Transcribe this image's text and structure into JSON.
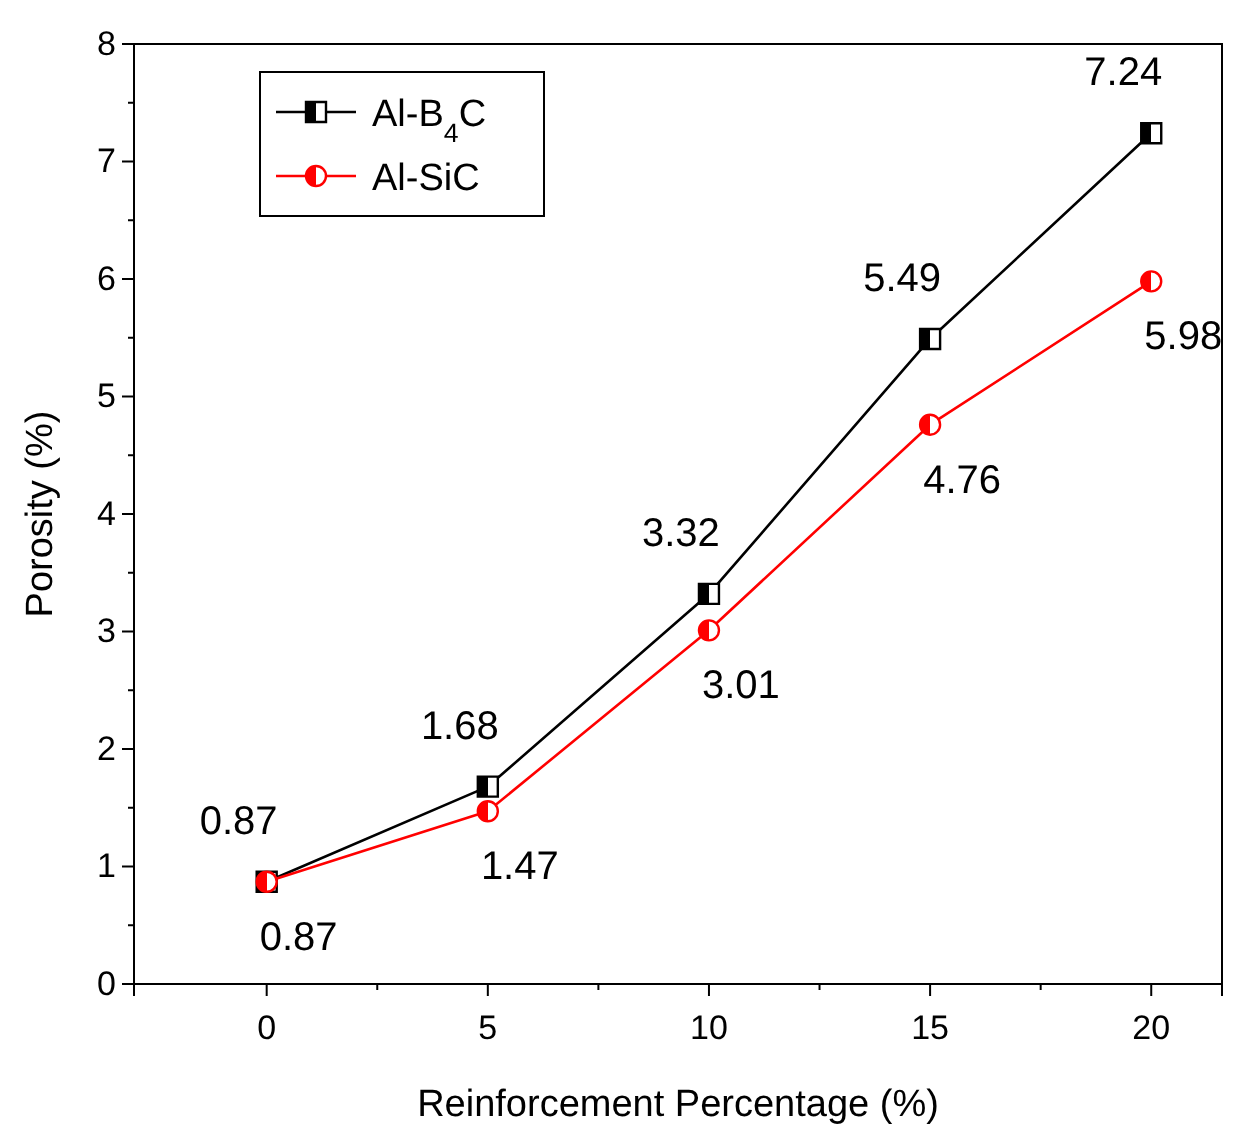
{
  "chart_data": {
    "type": "line",
    "xlabel": "Reinforcement Percentage (%)",
    "ylabel": "Porosity (%)",
    "x": [
      0,
      5,
      10,
      15,
      20
    ],
    "series": [
      {
        "name": "Al-B$_{4}$C",
        "color": "#000000",
        "marker": "square",
        "values": [
          0.87,
          1.68,
          3.32,
          5.49,
          7.24
        ]
      },
      {
        "name": "Al-SiC",
        "color": "#ff0000",
        "marker": "circle",
        "values": [
          0.87,
          1.47,
          3.01,
          4.76,
          5.98
        ]
      }
    ],
    "xlim": [
      -3,
      21.6
    ],
    "xticks": [
      0,
      5,
      10,
      15,
      20
    ],
    "ylim": [
      0,
      8
    ],
    "yticks": [
      0,
      1,
      2,
      3,
      4,
      5,
      6,
      7,
      8
    ],
    "data_labels": true,
    "legend": "top left",
    "grid": false,
    "line_style": "solid"
  }
}
